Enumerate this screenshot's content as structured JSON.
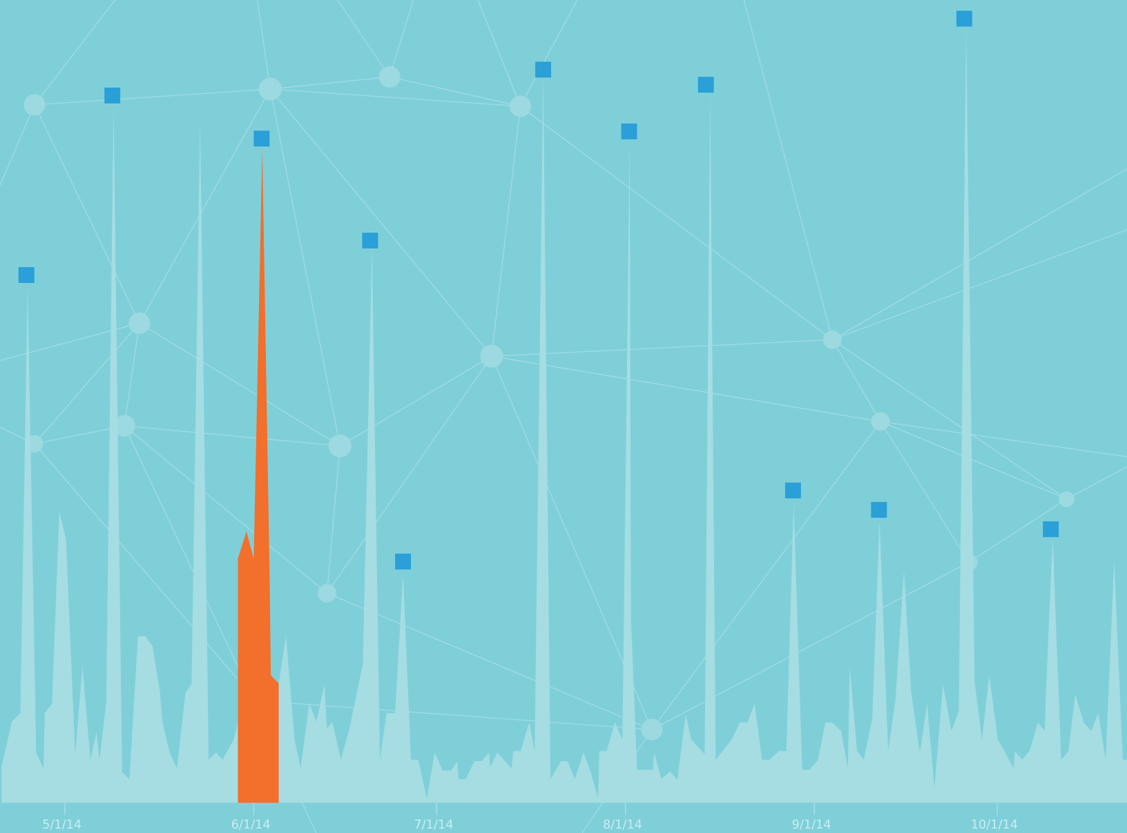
{
  "chart_data": {
    "type": "area",
    "xlim": [
      -10.4,
      174.3
    ],
    "ylim": [
      0,
      1118
    ],
    "xticks": [
      {
        "value": 0,
        "label": "5/1/14"
      },
      {
        "value": 31,
        "label": "6/1/14"
      },
      {
        "value": 61,
        "label": "7/1/14"
      },
      {
        "value": 92,
        "label": "8/1/14"
      },
      {
        "value": 123,
        "label": "9/1/14"
      },
      {
        "value": 153,
        "label": "10/1/14"
      }
    ],
    "series": [
      {
        "color": "#a5dde3",
        "x": [
          -10.4,
          -8.7,
          -7.3,
          -6.1,
          -4.7,
          -3.5,
          -3.3,
          -2.1,
          -0.9,
          0.2,
          1.7,
          2.9,
          4.2,
          5.2,
          5.7,
          6.8,
          8.0,
          9.4,
          10.6,
          12.0,
          13.2,
          14.4,
          15.6,
          16.0,
          17.2,
          18.4,
          19.8,
          20.8,
          22.2,
          23.6,
          24.8,
          25.9,
          27.7,
          28.4,
          31.7,
          35.1,
          36.3,
          37.7,
          38.7,
          40.1,
          41.3,
          42.6,
          43.0,
          43.9,
          45.3,
          46.7,
          48.9,
          50.4,
          51.7,
          52.8,
          54.2,
          55.5,
          56.8,
          58.0,
          59.4,
          60.7,
          62.0,
          63.4,
          64.4,
          64.6,
          65.8,
          67.2,
          68.4,
          69.6,
          69.8,
          71.0,
          73.3,
          73.6,
          74.8,
          76.2,
          77.1,
          78.5,
          79.7,
          81.4,
          82.5,
          83.7,
          85.1,
          86.3,
          87.5,
          87.7,
          88.9,
          90.3,
          91.5,
          92.7,
          92.9,
          93.9,
          95.3,
          96.5,
          96.7,
          97.9,
          99.3,
          100.5,
          101.9,
          102.8,
          105.0,
          105.9,
          106.8,
          109.4,
          110.8,
          112.0,
          113.2,
          114.4,
          115.6,
          117.2,
          118.4,
          119.6,
          121.0,
          122.2,
          123.6,
          124.8,
          125.9,
          127.4,
          128.5,
          128.8,
          130.0,
          131.1,
          132.5,
          133.7,
          135.1,
          136.3,
          137.7,
          138.9,
          140.3,
          141.5,
          142.7,
          144.1,
          145.5,
          146.7,
          147.9,
          149.3,
          150.5,
          151.7,
          153.1,
          154.2,
          155.7,
          155.9,
          157.1,
          158.3,
          159.7,
          160.8,
          161.0,
          162.1,
          163.5,
          164.7,
          165.8,
          167.2,
          168.4,
          169.6,
          170.8,
          172.2,
          173.6,
          174.3
        ],
        "values": [
          50,
          113,
          125,
          718,
          70,
          48,
          125,
          138,
          406,
          366,
          68,
          190,
          60,
          98,
          60,
          140,
          970,
          43,
          33,
          232,
          232,
          218,
          155,
          113,
          70,
          48,
          153,
          166,
          950,
          60,
          70,
          60,
          88,
          113,
          90,
          166,
          232,
          88,
          48,
          138,
          113,
          165,
          103,
          113,
          60,
          103,
          193,
          773,
          60,
          125,
          125,
          318,
          60,
          60,
          6,
          70,
          45,
          45,
          58,
          33,
          33,
          58,
          58,
          70,
          50,
          70,
          48,
          72,
          72,
          112,
          72,
          1010,
          33,
          58,
          58,
          33,
          70,
          43,
          6,
          72,
          72,
          112,
          88,
          923,
          258,
          46,
          46,
          46,
          70,
          33,
          44,
          32,
          123,
          88,
          68,
          988,
          60,
          88,
          112,
          112,
          138,
          60,
          60,
          72,
          72,
          418,
          46,
          46,
          60,
          112,
          112,
          100,
          48,
          190,
          72,
          60,
          118,
          393,
          72,
          143,
          323,
          153,
          70,
          138,
          20,
          165,
          100,
          128,
          1078,
          168,
          88,
          178,
          88,
          72,
          48,
          72,
          60,
          72,
          112,
          100,
          153,
          368,
          60,
          72,
          151,
          112,
          100,
          125,
          60,
          338,
          60,
          60
        ]
      },
      {
        "color": "#f26f2c",
        "x": [
          28.4,
          29.8,
          31.0,
          32.4,
          33.6,
          33.8,
          35.1
        ],
        "values": [
          340,
          378,
          340,
          913,
          318,
          178,
          166
        ]
      }
    ],
    "markers": {
      "color": "#2a9fd8",
      "x": [
        -6.3,
        7.8,
        32.3,
        50.1,
        55.5,
        78.5,
        92.6,
        105.2,
        119.5,
        133.6,
        147.6,
        161.8
      ],
      "values": [
        735,
        985,
        925,
        783,
        336,
        1021,
        935,
        1000,
        435,
        408,
        1092,
        381
      ]
    }
  }
}
